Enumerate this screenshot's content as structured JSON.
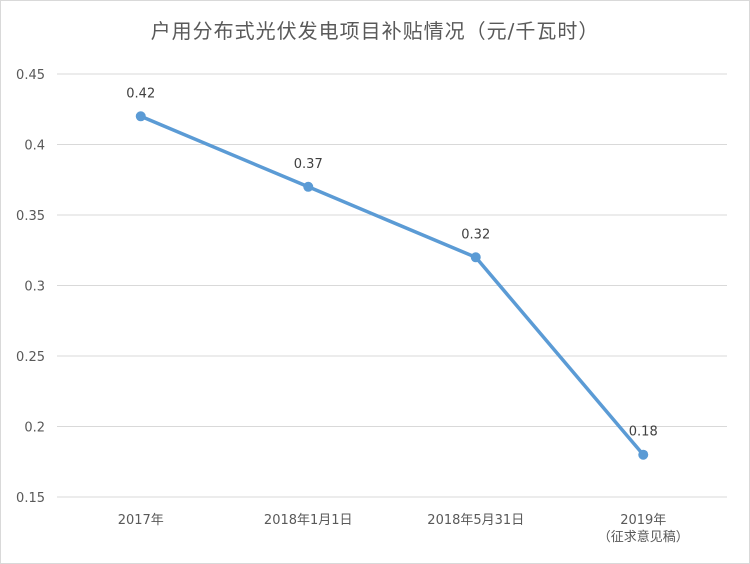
{
  "chart_data": {
    "type": "line",
    "title": "户用分布式光伏发电项目补贴情况（元/千瓦时）",
    "categories": [
      [
        "2017年"
      ],
      [
        "2018年1月1日"
      ],
      [
        "2018年5月31日"
      ],
      [
        "2019年",
        "（征求意见稿）"
      ]
    ],
    "values": [
      0.42,
      0.37,
      0.32,
      0.18
    ],
    "data_labels": [
      "0.42",
      "0.37",
      "0.32",
      "0.18"
    ],
    "y_ticks": [
      "0.15",
      "0.2",
      "0.25",
      "0.3",
      "0.35",
      "0.4",
      "0.45"
    ],
    "ylim": [
      0.15,
      0.45
    ],
    "grid": true,
    "legend": "none",
    "colors": {
      "line": "#5b9bd5",
      "grid": "#d9d9d9",
      "text": "#595959"
    }
  }
}
